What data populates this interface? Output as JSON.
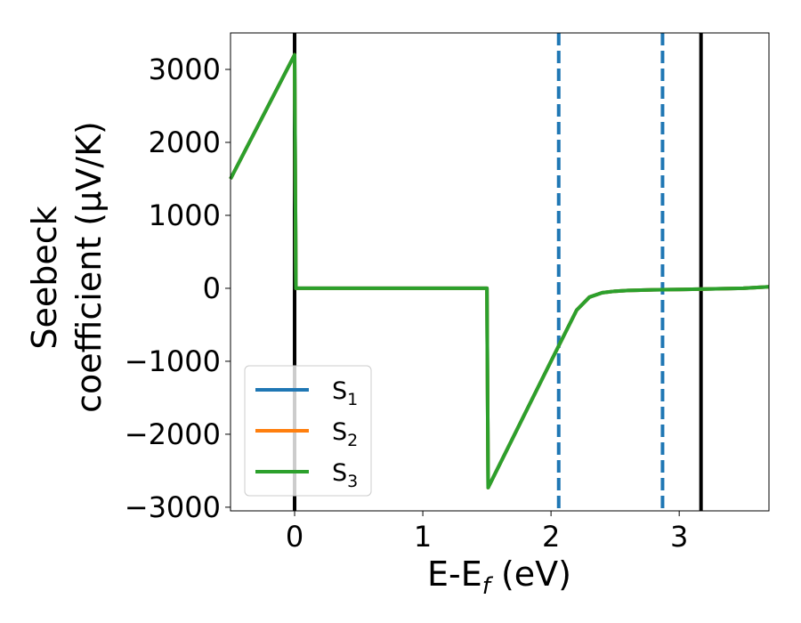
{
  "chart_data": {
    "type": "line",
    "xlabel_main": "E-E",
    "xlabel_sub": "f",
    "xlabel_tail": " (eV)",
    "ylabel_line1": "Seebeck",
    "ylabel_line2": "coefficient  (μV/K)",
    "xlim": [
      -0.5,
      3.7
    ],
    "ylim": [
      -3050,
      3500
    ],
    "xticks": [
      0,
      1,
      2,
      3
    ],
    "xtick_labels": [
      "0",
      "1",
      "2",
      "3"
    ],
    "yticks": [
      3000,
      2000,
      1000,
      0,
      -1000,
      -2000,
      -3000
    ],
    "ytick_labels": [
      "3000",
      "2000",
      "1000",
      "0",
      "−1000",
      "−2000",
      "−3000"
    ],
    "grid": false,
    "legend_position": "lower-left",
    "series": [
      {
        "name_main": "S",
        "name_sub": "1",
        "color": "#1f77b4",
        "x": [
          -0.5,
          0.0,
          0.01,
          1.5,
          1.51,
          2.0,
          2.2,
          2.3,
          2.4,
          2.5,
          2.6,
          2.7,
          2.8,
          3.0,
          3.2,
          3.5,
          3.7
        ],
        "y": [
          1500,
          3200,
          0,
          0,
          -2730,
          -1000,
          -300,
          -120,
          -60,
          -40,
          -30,
          -25,
          -20,
          -15,
          -10,
          0,
          20
        ]
      },
      {
        "name_main": "S",
        "name_sub": "2",
        "color": "#ff7f0e",
        "x": [
          -0.5,
          0.0,
          0.01,
          1.5,
          1.51,
          2.0,
          2.2,
          2.3,
          2.4,
          2.5,
          2.6,
          2.7,
          2.8,
          3.0,
          3.2,
          3.5,
          3.7
        ],
        "y": [
          1500,
          3200,
          0,
          0,
          -2730,
          -1000,
          -300,
          -120,
          -60,
          -40,
          -30,
          -25,
          -20,
          -15,
          -10,
          0,
          20
        ]
      },
      {
        "name_main": "S",
        "name_sub": "3",
        "color": "#2ca02c",
        "x": [
          -0.5,
          0.0,
          0.01,
          1.5,
          1.51,
          2.0,
          2.2,
          2.3,
          2.4,
          2.5,
          2.6,
          2.7,
          2.8,
          3.0,
          3.2,
          3.5,
          3.7
        ],
        "y": [
          1500,
          3200,
          0,
          0,
          -2730,
          -1000,
          -300,
          -120,
          -60,
          -40,
          -30,
          -25,
          -20,
          -15,
          -10,
          0,
          20
        ]
      }
    ],
    "vlines": [
      {
        "x": 0.0,
        "color": "#000000",
        "style": "solid"
      },
      {
        "x": 3.17,
        "color": "#000000",
        "style": "solid"
      },
      {
        "x": 2.06,
        "color": "#1f77b4",
        "style": "dashed"
      },
      {
        "x": 2.87,
        "color": "#1f77b4",
        "style": "dashed"
      }
    ]
  }
}
